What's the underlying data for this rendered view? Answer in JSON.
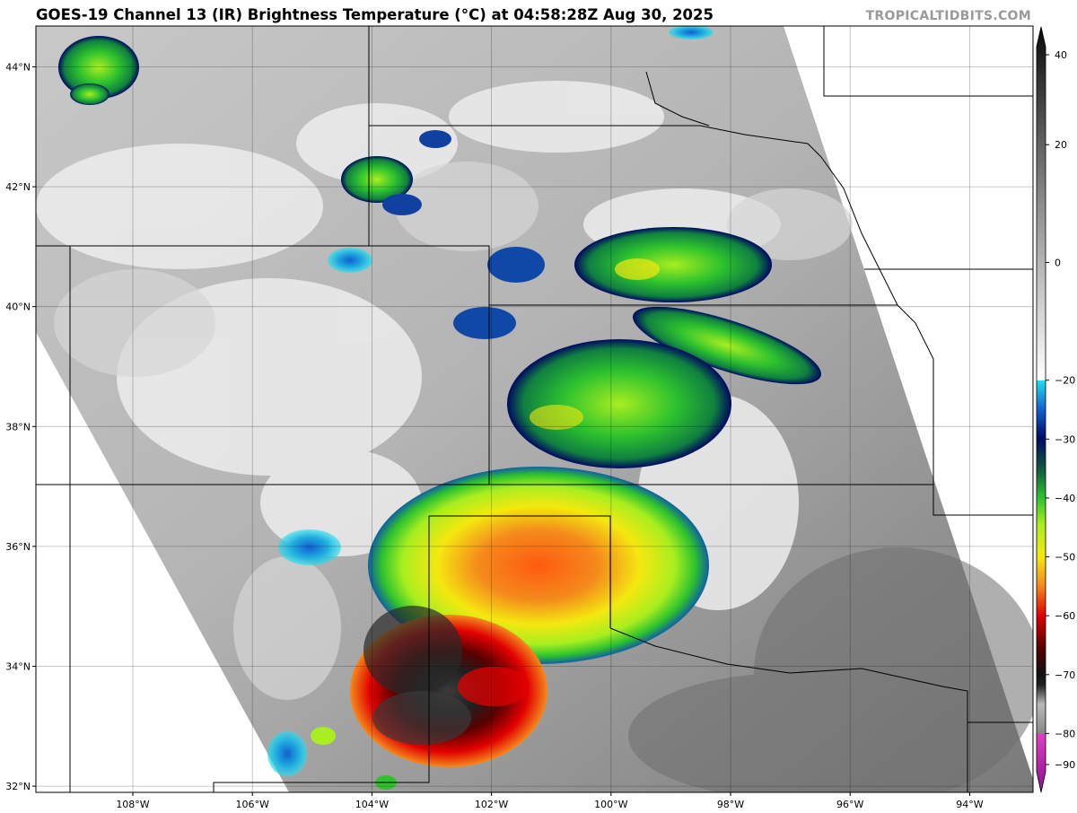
{
  "title": "GOES-19 Channel 13 (IR) Brightness Temperature (°C) at 04:58:28Z Aug 30, 2025",
  "credit": "TROPICALTIDBITS.COM",
  "map": {
    "longitude_ticks": [
      {
        "value": -108,
        "label": "108°W"
      },
      {
        "value": -106,
        "label": "106°W"
      },
      {
        "value": -104,
        "label": "104°W"
      },
      {
        "value": -102,
        "label": "102°W"
      },
      {
        "value": -100,
        "label": "100°W"
      },
      {
        "value": -98,
        "label": "98°W"
      },
      {
        "value": -96,
        "label": "96°W"
      },
      {
        "value": -94,
        "label": "94°W"
      }
    ],
    "latitude_ticks": [
      {
        "value": 44,
        "label": "44°N"
      },
      {
        "value": 42,
        "label": "42°N"
      },
      {
        "value": 40,
        "label": "40°N"
      },
      {
        "value": 38,
        "label": "38°N"
      },
      {
        "value": 36,
        "label": "36°N"
      },
      {
        "value": 34,
        "label": "34°N"
      },
      {
        "value": 32,
        "label": "32°N"
      }
    ]
  },
  "colorbar": {
    "range": [
      -90,
      40
    ],
    "ticks": [
      {
        "value": 40,
        "label": "40"
      },
      {
        "value": 20,
        "label": "20"
      },
      {
        "value": 0,
        "label": "0"
      },
      {
        "value": -20,
        "label": "−20"
      },
      {
        "value": -30,
        "label": "−30"
      },
      {
        "value": -40,
        "label": "−40"
      },
      {
        "value": -50,
        "label": "−50"
      },
      {
        "value": -60,
        "label": "−60"
      },
      {
        "value": -70,
        "label": "−70"
      },
      {
        "value": -80,
        "label": "−80"
      },
      {
        "value": -90,
        "label": "−90"
      }
    ],
    "colors": {
      "warm_black": "#111111",
      "gray": "#8c8c8c",
      "white": "#f4f4f4",
      "cyan": "#22e0ee",
      "blue": "#1040a0",
      "navy": "#000a60",
      "green": "#2ec22e",
      "lime": "#a8ee20",
      "yellow": "#f4e810",
      "orange": "#f48a1c",
      "red": "#e20000",
      "dark_red": "#6a0000",
      "magenta": "#e040c0",
      "purple": "#8a1090"
    }
  }
}
